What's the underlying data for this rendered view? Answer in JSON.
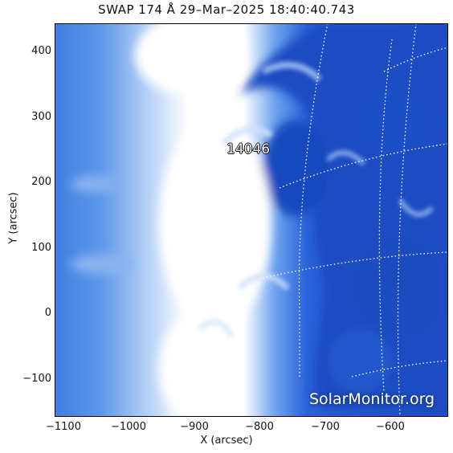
{
  "title": "SWAP 174 Å 29–Mar–2025 18:40:40.743",
  "axes": {
    "xlabel": "X (arcsec)",
    "ylabel": "Y (arcsec)",
    "xticks": [
      "−1100",
      "−1000",
      "−900",
      "−800",
      "−700",
      "−600"
    ],
    "yticks": [
      "400",
      "300",
      "200",
      "100",
      "0",
      "−100"
    ]
  },
  "region_label": "14046",
  "watermark": "SolarMonitor.org",
  "colors": {
    "deep": "#1a4fc4",
    "mid": "#2e6be0",
    "light": "#9fc2f5",
    "white": "#ffffff"
  }
}
